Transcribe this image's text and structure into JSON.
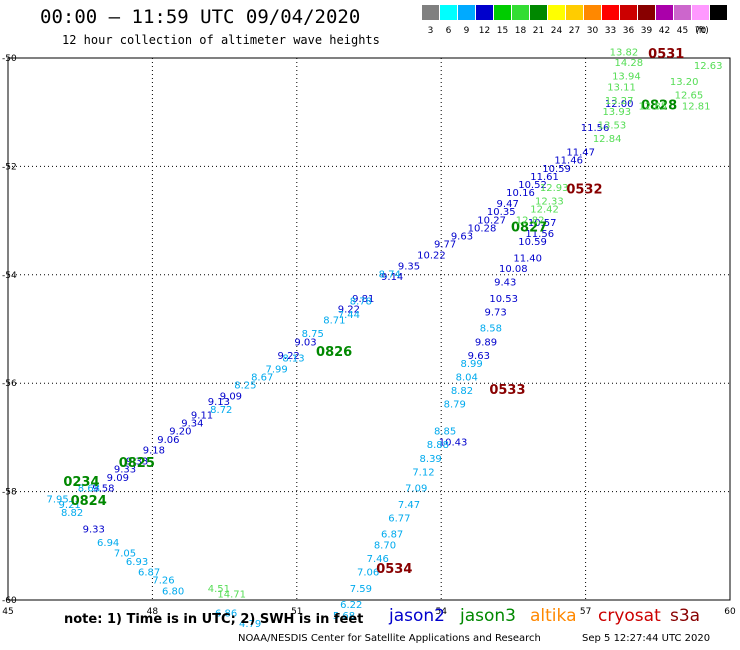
{
  "header": {
    "title": "00:00 – 11:59 UTC 09/04/2020",
    "subtitle": "12 hour collection of altimeter wave heights"
  },
  "scale": {
    "unit_label": "(ft)",
    "bins": [
      {
        "label": "3",
        "color": "#808080"
      },
      {
        "label": "6",
        "color": "#00ffff"
      },
      {
        "label": "9",
        "color": "#00aaff"
      },
      {
        "label": "12",
        "color": "#0000cc"
      },
      {
        "label": "15",
        "color": "#00cc00"
      },
      {
        "label": "18",
        "color": "#33dd33"
      },
      {
        "label": "21",
        "color": "#008800"
      },
      {
        "label": "24",
        "color": "#ffff00"
      },
      {
        "label": "27",
        "color": "#ffcc00"
      },
      {
        "label": "30",
        "color": "#ff8800"
      },
      {
        "label": "33",
        "color": "#ff0000"
      },
      {
        "label": "36",
        "color": "#cc0000"
      },
      {
        "label": "39",
        "color": "#880000"
      },
      {
        "label": "42",
        "color": "#aa00aa"
      },
      {
        "label": "45",
        "color": "#cc66cc"
      },
      {
        "label": "70",
        "color": "#ff99ff"
      },
      {
        "label": "",
        "color": "#000000"
      }
    ]
  },
  "note": {
    "text": "note: 1) Time is in UTC; 2) SWH is in feet",
    "satellites": [
      {
        "name": "jason2",
        "color": "#0000cc"
      },
      {
        "name": "jason3",
        "color": "#008800"
      },
      {
        "name": "altika",
        "color": "#ff8800"
      },
      {
        "name": "cryosat",
        "color": "#cc0000"
      },
      {
        "name": "s3a",
        "color": "#880000"
      }
    ]
  },
  "footer": {
    "credit": "NOAA/NESDIS Center for Satellite Applications and Research",
    "timestamp": "Sep  5 12:27:44 UTC 2020"
  },
  "chart_data": {
    "type": "scatter",
    "title": "00:00 – 11:59 UTC 09/04/2020",
    "subtitle": "12 hour collection of altimeter wave heights",
    "xlim": [
      45,
      60
    ],
    "ylim": [
      -60,
      -50
    ],
    "xticks": [
      45,
      48,
      51,
      54,
      57,
      60
    ],
    "yticks": [
      -50,
      -52,
      -54,
      -56,
      -58,
      -60
    ],
    "xtick_labels": [
      "45",
      "48",
      "51",
      "54",
      "57",
      "60"
    ],
    "ytick_labels": [
      "-50",
      "-52",
      "-54",
      "-56",
      "-58",
      "-60"
    ],
    "grid": true,
    "series": [
      {
        "name": "jason2",
        "color": "#0000cc",
        "points": [
          [
            46.55,
            -58.75,
            "9.33"
          ],
          [
            46.75,
            -58.0,
            "9.58"
          ],
          [
            47.05,
            -57.8,
            "9.09"
          ],
          [
            47.2,
            -57.65,
            "9.33"
          ],
          [
            47.45,
            -57.5,
            "9.33"
          ],
          [
            47.8,
            -57.3,
            "9.18"
          ],
          [
            48.1,
            -57.1,
            "9.06"
          ],
          [
            48.35,
            -56.95,
            "9.20"
          ],
          [
            48.6,
            -56.8,
            "9.34"
          ],
          [
            48.8,
            -56.65,
            "9.11"
          ],
          [
            49.15,
            -56.4,
            "9.13"
          ],
          [
            49.4,
            -56.3,
            "9.09"
          ],
          [
            50.6,
            -55.55,
            "9.22"
          ],
          [
            50.95,
            -55.3,
            "9.03"
          ],
          [
            51.85,
            -54.7,
            "9.22"
          ],
          [
            52.15,
            -54.5,
            "9.81"
          ],
          [
            52.75,
            -54.1,
            "9.14"
          ],
          [
            53.1,
            -53.9,
            "9.35"
          ],
          [
            53.5,
            -53.7,
            "10.22"
          ],
          [
            53.85,
            -53.5,
            "9.77"
          ],
          [
            54.2,
            -53.35,
            "9.63"
          ],
          [
            54.55,
            -53.2,
            "10.28"
          ],
          [
            54.75,
            -53.05,
            "10.27"
          ],
          [
            54.95,
            -52.9,
            "10.35"
          ],
          [
            55.15,
            -52.75,
            "9.47"
          ],
          [
            55.35,
            -52.55,
            "10.16"
          ],
          [
            55.6,
            -52.4,
            "10.52"
          ],
          [
            55.85,
            -52.25,
            "11.61"
          ],
          [
            56.1,
            -52.1,
            "10.59"
          ],
          [
            56.35,
            -51.95,
            "11.46"
          ],
          [
            56.6,
            -51.8,
            "11.47"
          ],
          [
            56.9,
            -51.35,
            "11.56"
          ],
          [
            57.4,
            -50.9,
            "12.00"
          ],
          [
            55.8,
            -53.1,
            "10.57"
          ],
          [
            55.75,
            -53.3,
            "11.56"
          ],
          [
            55.6,
            -53.45,
            "10.59"
          ],
          [
            55.5,
            -53.75,
            "11.40"
          ],
          [
            55.2,
            -53.95,
            "10.08"
          ],
          [
            55.1,
            -54.2,
            "9.43"
          ],
          [
            55.0,
            -54.5,
            "10.53"
          ],
          [
            54.9,
            -54.75,
            "9.73"
          ],
          [
            54.7,
            -55.3,
            "9.89"
          ],
          [
            54.55,
            -55.55,
            "9.63"
          ],
          [
            53.95,
            -57.15,
            "10.43"
          ]
        ]
      },
      {
        "name": "jason2_light",
        "color": "#00aaee",
        "points": [
          [
            45.8,
            -58.2,
            "7.95"
          ],
          [
            46.05,
            -58.3,
            "9.21"
          ],
          [
            46.1,
            -58.45,
            "8.82"
          ],
          [
            46.45,
            -58.0,
            "8.68"
          ],
          [
            46.85,
            -59.0,
            "6.94"
          ],
          [
            47.2,
            -59.2,
            "7.05"
          ],
          [
            47.45,
            -59.35,
            "6.93"
          ],
          [
            47.7,
            -59.55,
            "6.87"
          ],
          [
            48.0,
            -59.7,
            "7.26"
          ],
          [
            48.2,
            -59.9,
            "6.80"
          ],
          [
            49.2,
            -56.55,
            "8.72"
          ],
          [
            49.7,
            -56.1,
            "8.25"
          ],
          [
            50.05,
            -55.95,
            "8.67"
          ],
          [
            50.35,
            -55.8,
            "7.99"
          ],
          [
            50.7,
            -55.6,
            "8.13"
          ],
          [
            51.1,
            -55.15,
            "8.75"
          ],
          [
            51.55,
            -54.9,
            "8.71"
          ],
          [
            51.85,
            -54.8,
            "7.44"
          ],
          [
            52.1,
            -54.55,
            "8.78"
          ],
          [
            52.7,
            -54.05,
            "8.74"
          ],
          [
            54.8,
            -55.05,
            "8.58"
          ],
          [
            54.4,
            -55.7,
            "8.99"
          ],
          [
            54.3,
            -55.95,
            "8.04"
          ],
          [
            54.2,
            -56.2,
            "8.82"
          ],
          [
            54.05,
            -56.45,
            "8.79"
          ],
          [
            53.85,
            -56.95,
            "8.85"
          ],
          [
            53.7,
            -57.2,
            "8.88"
          ],
          [
            53.55,
            -57.45,
            "8.39"
          ],
          [
            53.4,
            -57.7,
            "7.12"
          ],
          [
            53.25,
            -58.0,
            "7.09"
          ],
          [
            53.1,
            -58.3,
            "7.47"
          ],
          [
            52.9,
            -58.55,
            "6.77"
          ],
          [
            52.75,
            -58.85,
            "6.87"
          ],
          [
            52.6,
            -59.05,
            "8.70"
          ],
          [
            52.45,
            -59.3,
            "7.46"
          ],
          [
            52.25,
            -59.55,
            "7.06"
          ],
          [
            52.1,
            -59.85,
            "7.59"
          ],
          [
            51.9,
            -60.15,
            "6.22"
          ],
          [
            51.75,
            -60.35,
            "5.68"
          ],
          [
            49.3,
            -60.3,
            "6.86"
          ],
          [
            49.8,
            -60.5,
            "4.79"
          ]
        ]
      },
      {
        "name": "jason3",
        "color": "#008800",
        "points": [
          [
            46.15,
            -57.9,
            "0234"
          ],
          [
            46.3,
            -58.25,
            "0824"
          ],
          [
            47.3,
            -57.55,
            "0825"
          ],
          [
            51.4,
            -55.5,
            "0826"
          ],
          [
            55.45,
            -53.2,
            "0827"
          ],
          [
            58.15,
            -50.95,
            "0828"
          ]
        ]
      },
      {
        "name": "jason3_light",
        "color": "#55dd55",
        "points": [
          [
            57.5,
            -49.95,
            "13.82"
          ],
          [
            57.6,
            -50.15,
            "14.28"
          ],
          [
            57.55,
            -50.4,
            "13.94"
          ],
          [
            57.45,
            -50.6,
            "13.11"
          ],
          [
            57.4,
            -50.85,
            "13.27"
          ],
          [
            57.35,
            -51.05,
            "13.93"
          ],
          [
            57.25,
            -51.3,
            "13.53"
          ],
          [
            57.15,
            -51.55,
            "12.84"
          ],
          [
            56.05,
            -52.45,
            "12.93"
          ],
          [
            55.95,
            -52.7,
            "12.33"
          ],
          [
            55.85,
            -52.85,
            "12.42"
          ],
          [
            55.55,
            -53.05,
            "12.82"
          ],
          [
            58.75,
            -50.5,
            "13.20"
          ],
          [
            58.85,
            -50.75,
            "12.65"
          ],
          [
            59.0,
            -50.95,
            "12.81"
          ],
          [
            59.25,
            -50.2,
            "12.63"
          ],
          [
            58.1,
            -50.95,
            "12.85"
          ],
          [
            49.15,
            -59.85,
            "4.51"
          ],
          [
            49.35,
            -59.95,
            "14.71"
          ]
        ]
      },
      {
        "name": "s3a",
        "color": "#880000",
        "points": [
          [
            58.3,
            -50.0,
            "0531"
          ],
          [
            56.6,
            -52.5,
            "0532"
          ],
          [
            55.0,
            -56.2,
            "0533"
          ],
          [
            52.65,
            -59.5,
            "0534"
          ]
        ]
      }
    ]
  }
}
